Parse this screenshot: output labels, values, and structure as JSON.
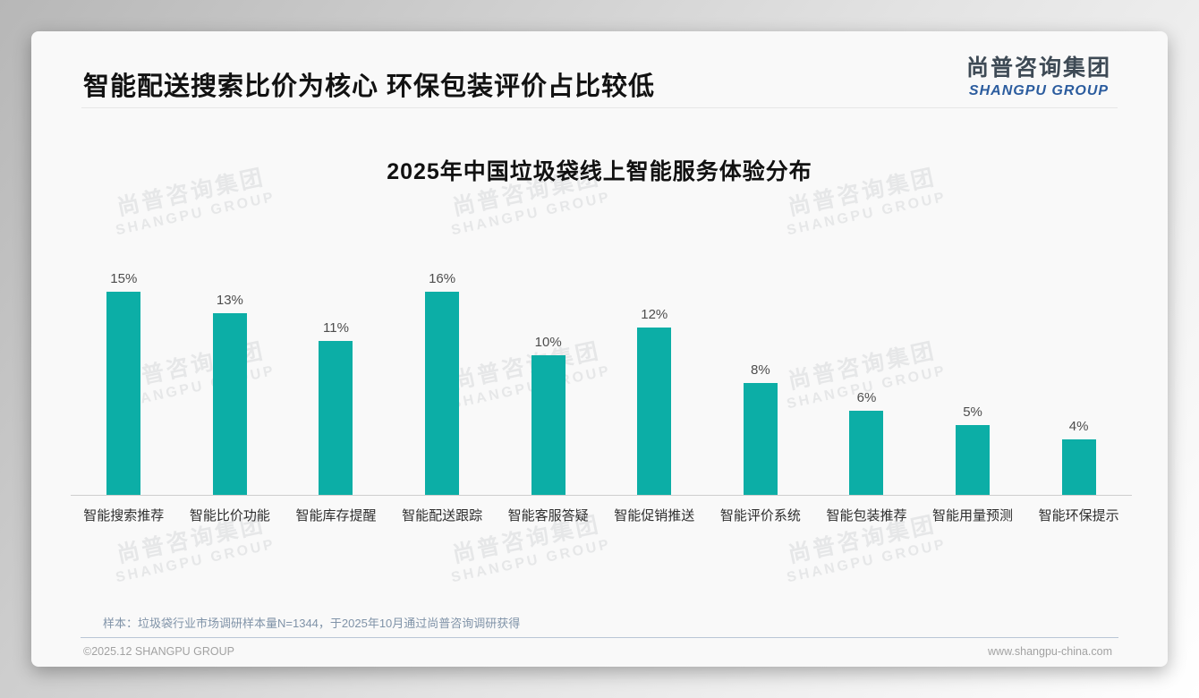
{
  "header": {
    "title": "智能配送搜索比价为核心 环保包装评价占比较低",
    "logo_cn": "尚普咨询集团",
    "logo_en": "SHANGPU GROUP"
  },
  "watermark": {
    "line1": "尚普咨询集团",
    "line2": "SHANGPU GROUP"
  },
  "chart_data": {
    "type": "bar",
    "title": "2025年中国垃圾袋线上智能服务体验分布",
    "categories": [
      "智能搜索推荐",
      "智能比价功能",
      "智能库存提醒",
      "智能配送跟踪",
      "智能客服答疑",
      "智能促销推送",
      "智能评价系统",
      "智能包装推荐",
      "智能用量预测",
      "智能环保提示"
    ],
    "values": [
      15,
      13,
      11,
      16,
      10,
      12,
      8,
      6,
      5,
      4
    ],
    "unit": "%",
    "ylim": [
      0,
      16
    ],
    "grid": false,
    "legend": false,
    "value_labels": true,
    "bar_color": "#0caea6"
  },
  "colors": {
    "accent_teal": "#0caea6",
    "logo_blue": "#2b5c9e"
  },
  "footnote": "样本：垃圾袋行业市场调研样本量N=1344，于2025年10月通过尚普咨询调研获得",
  "footer": {
    "left": "©2025.12 SHANGPU GROUP",
    "right": "www.shangpu-china.com"
  }
}
